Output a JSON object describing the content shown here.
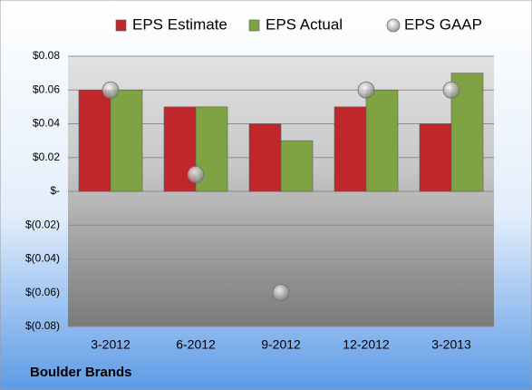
{
  "chart_data": {
    "type": "bar",
    "footer": "Boulder Brands",
    "categories": [
      "3-2012",
      "6-2012",
      "9-2012",
      "12-2012",
      "3-2013"
    ],
    "series": [
      {
        "name": "EPS Estimate",
        "color": "#c0272d",
        "type": "bar",
        "values": [
          0.06,
          0.05,
          0.04,
          0.05,
          0.04
        ]
      },
      {
        "name": "EPS Actual",
        "color": "#7fa343",
        "type": "bar",
        "values": [
          0.06,
          0.05,
          0.03,
          0.06,
          0.07
        ]
      },
      {
        "name": "EPS GAAP",
        "color": "#9a9a9a",
        "type": "scatter",
        "values": [
          0.06,
          0.01,
          -0.06,
          0.06,
          0.06
        ]
      }
    ],
    "ylim": [
      -0.08,
      0.08
    ],
    "yticks": [
      {
        "value": 0.08,
        "label": "$0.08"
      },
      {
        "value": 0.06,
        "label": "$0.06"
      },
      {
        "value": 0.04,
        "label": "$0.04"
      },
      {
        "value": 0.02,
        "label": "$0.02"
      },
      {
        "value": 0,
        "label": "$-"
      },
      {
        "value": -0.02,
        "label": "$(0.02)"
      },
      {
        "value": -0.04,
        "label": "$(0.04)"
      },
      {
        "value": -0.06,
        "label": "$(0.06)"
      },
      {
        "value": -0.08,
        "label": "$(0.08)"
      }
    ],
    "grid": true,
    "legend": "top"
  }
}
